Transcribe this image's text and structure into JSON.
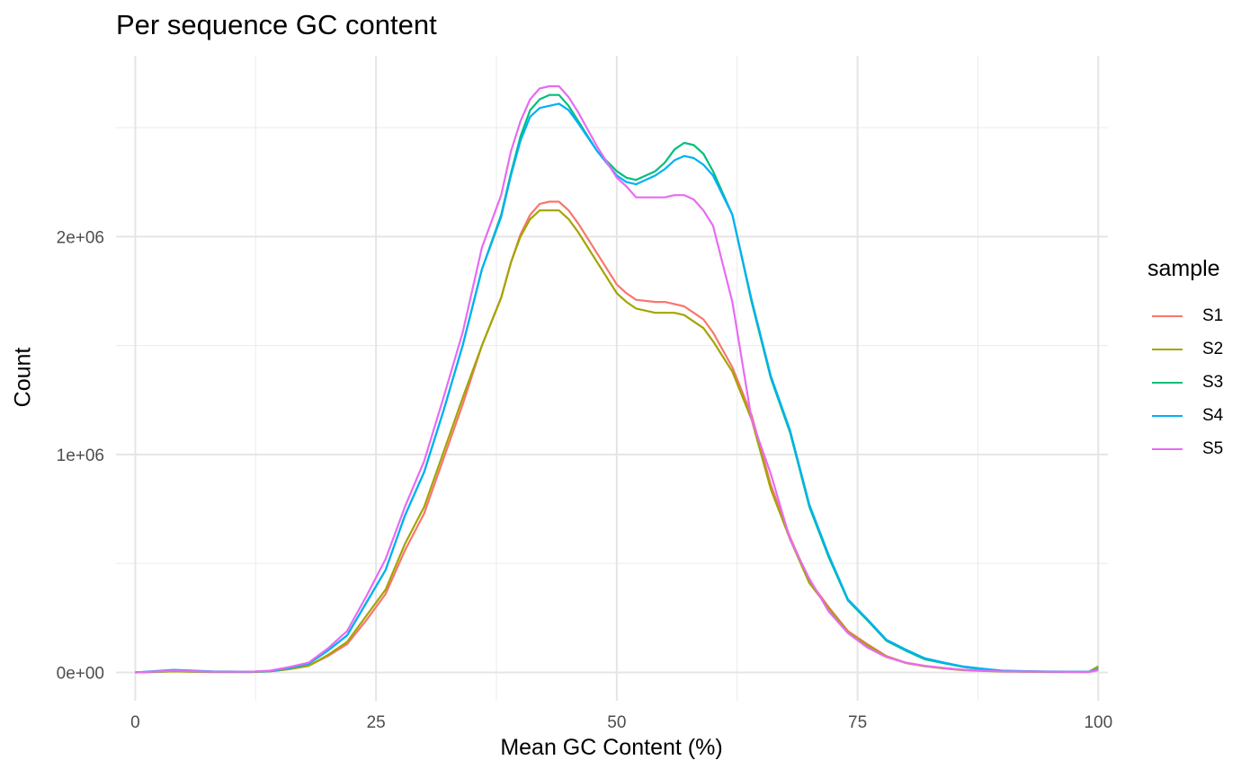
{
  "chart_data": {
    "type": "line",
    "title": "Per sequence GC content",
    "xlabel": "Mean GC Content (%)",
    "ylabel": "Count",
    "xlim": [
      -2,
      101
    ],
    "ylim": [
      -130000,
      2830000
    ],
    "x_ticks": [
      0,
      25,
      50,
      75,
      100
    ],
    "x_tick_labels": [
      "0",
      "25",
      "50",
      "75",
      "100"
    ],
    "y_ticks": [
      0,
      1000000,
      2000000
    ],
    "y_tick_labels": [
      "0e+00",
      "1e+06",
      "2e+06"
    ],
    "grid": true,
    "legend": {
      "title": "sample",
      "position": "right"
    },
    "x": [
      0,
      4,
      8,
      12,
      14,
      16,
      18,
      20,
      22,
      24,
      26,
      28,
      30,
      32,
      34,
      36,
      38,
      39,
      40,
      41,
      42,
      43,
      44,
      45,
      46,
      48,
      50,
      51,
      52,
      54,
      55,
      56,
      57,
      58,
      59,
      60,
      62,
      64,
      66,
      68,
      70,
      72,
      74,
      76,
      78,
      80,
      82,
      84,
      86,
      88,
      90,
      95,
      99,
      100
    ],
    "series": [
      {
        "name": "S1",
        "color": "#F8766D",
        "values": [
          0,
          5000,
          2000,
          2000,
          5000,
          15000,
          30000,
          75000,
          130000,
          240000,
          360000,
          560000,
          730000,
          980000,
          1230000,
          1500000,
          1720000,
          1880000,
          2010000,
          2100000,
          2150000,
          2160000,
          2160000,
          2120000,
          2060000,
          1920000,
          1780000,
          1740000,
          1710000,
          1700000,
          1700000,
          1690000,
          1680000,
          1650000,
          1620000,
          1560000,
          1400000,
          1180000,
          860000,
          620000,
          420000,
          300000,
          190000,
          130000,
          75000,
          45000,
          30000,
          20000,
          12000,
          8000,
          5000,
          3000,
          3000,
          25000
        ]
      },
      {
        "name": "S2",
        "color": "#A3A500",
        "values": [
          0,
          5000,
          2000,
          2000,
          5000,
          15000,
          30000,
          80000,
          140000,
          260000,
          380000,
          590000,
          760000,
          1010000,
          1260000,
          1500000,
          1720000,
          1880000,
          2000000,
          2080000,
          2120000,
          2120000,
          2120000,
          2080000,
          2020000,
          1880000,
          1740000,
          1700000,
          1670000,
          1650000,
          1650000,
          1650000,
          1640000,
          1610000,
          1580000,
          1520000,
          1380000,
          1160000,
          840000,
          610000,
          410000,
          295000,
          185000,
          125000,
          72000,
          43000,
          28000,
          18000,
          10000,
          7000,
          4000,
          2000,
          2000,
          28000
        ]
      },
      {
        "name": "S3",
        "color": "#00BF7D",
        "values": [
          0,
          8000,
          3000,
          3000,
          6000,
          20000,
          40000,
          100000,
          170000,
          320000,
          470000,
          720000,
          920000,
          1200000,
          1500000,
          1850000,
          2100000,
          2290000,
          2460000,
          2580000,
          2630000,
          2650000,
          2650000,
          2600000,
          2530000,
          2390000,
          2300000,
          2270000,
          2260000,
          2300000,
          2340000,
          2400000,
          2430000,
          2420000,
          2380000,
          2300000,
          2100000,
          1700000,
          1350000,
          1100000,
          760000,
          530000,
          330000,
          240000,
          145000,
          100000,
          60000,
          42000,
          25000,
          15000,
          7000,
          3000,
          3000,
          15000
        ]
      },
      {
        "name": "S4",
        "color": "#00B0F6",
        "values": [
          0,
          12000,
          5000,
          3000,
          6000,
          20000,
          40000,
          100000,
          170000,
          320000,
          470000,
          720000,
          920000,
          1200000,
          1500000,
          1850000,
          2090000,
          2280000,
          2440000,
          2550000,
          2590000,
          2600000,
          2610000,
          2580000,
          2520000,
          2390000,
          2280000,
          2250000,
          2240000,
          2280000,
          2310000,
          2350000,
          2370000,
          2360000,
          2330000,
          2280000,
          2100000,
          1710000,
          1360000,
          1110000,
          770000,
          540000,
          335000,
          245000,
          150000,
          105000,
          65000,
          45000,
          27000,
          17000,
          8000,
          4000,
          3000,
          15000
        ]
      },
      {
        "name": "S5",
        "color": "#E76BF3",
        "values": [
          0,
          8000,
          3000,
          3000,
          8000,
          25000,
          45000,
          110000,
          190000,
          350000,
          520000,
          760000,
          970000,
          1260000,
          1560000,
          1950000,
          2190000,
          2390000,
          2530000,
          2630000,
          2680000,
          2690000,
          2690000,
          2640000,
          2570000,
          2410000,
          2270000,
          2230000,
          2180000,
          2180000,
          2180000,
          2190000,
          2190000,
          2170000,
          2120000,
          2050000,
          1700000,
          1160000,
          910000,
          610000,
          430000,
          280000,
          180000,
          115000,
          70000,
          45000,
          30000,
          20000,
          12000,
          8000,
          5000,
          3000,
          2000,
          10000
        ]
      }
    ]
  }
}
